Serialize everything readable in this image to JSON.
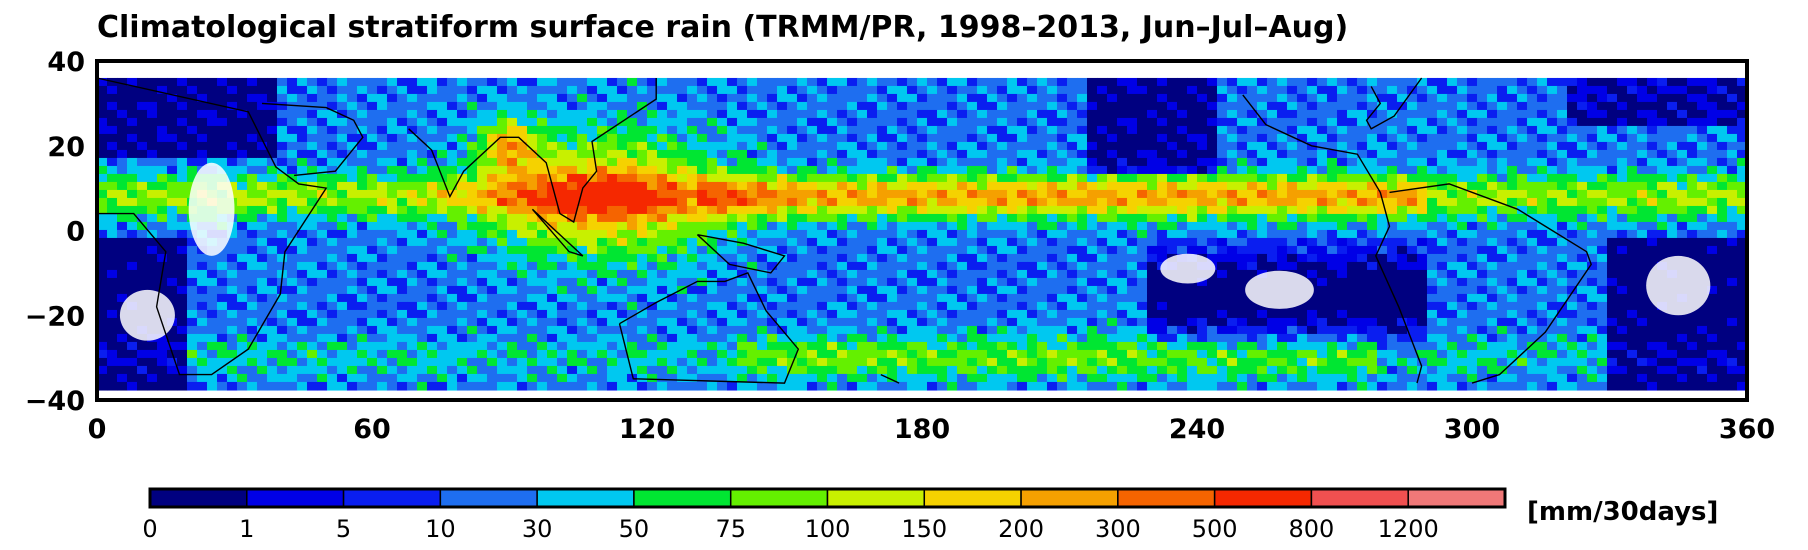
{
  "title": "Climatological stratiform surface rain   (TRMM/PR, 1998–2013, Jun–Jul–Aug)",
  "map": {
    "x_ticks": [
      "0",
      "60",
      "120",
      "180",
      "240",
      "300",
      "360"
    ],
    "y_ticks": [
      "40",
      "20",
      "0",
      "−20",
      "−40"
    ],
    "lon_range": [
      0,
      360
    ],
    "lat_range": [
      -40,
      40
    ],
    "data_lat_range": [
      -36,
      36
    ],
    "background": "#ffffff"
  },
  "colorbar": {
    "labels": [
      "0",
      "1",
      "5",
      "10",
      "30",
      "50",
      "75",
      "100",
      "150",
      "200",
      "300",
      "500",
      "800",
      "1200"
    ],
    "colors": [
      "#000080",
      "#0000e6",
      "#0a1ef0",
      "#1e6ef0",
      "#00c8f0",
      "#00e632",
      "#64f000",
      "#c8f000",
      "#f5d200",
      "#f5a000",
      "#f56400",
      "#f52800",
      "#f05050",
      "#f07878"
    ],
    "units": "[mm/30days]"
  }
}
